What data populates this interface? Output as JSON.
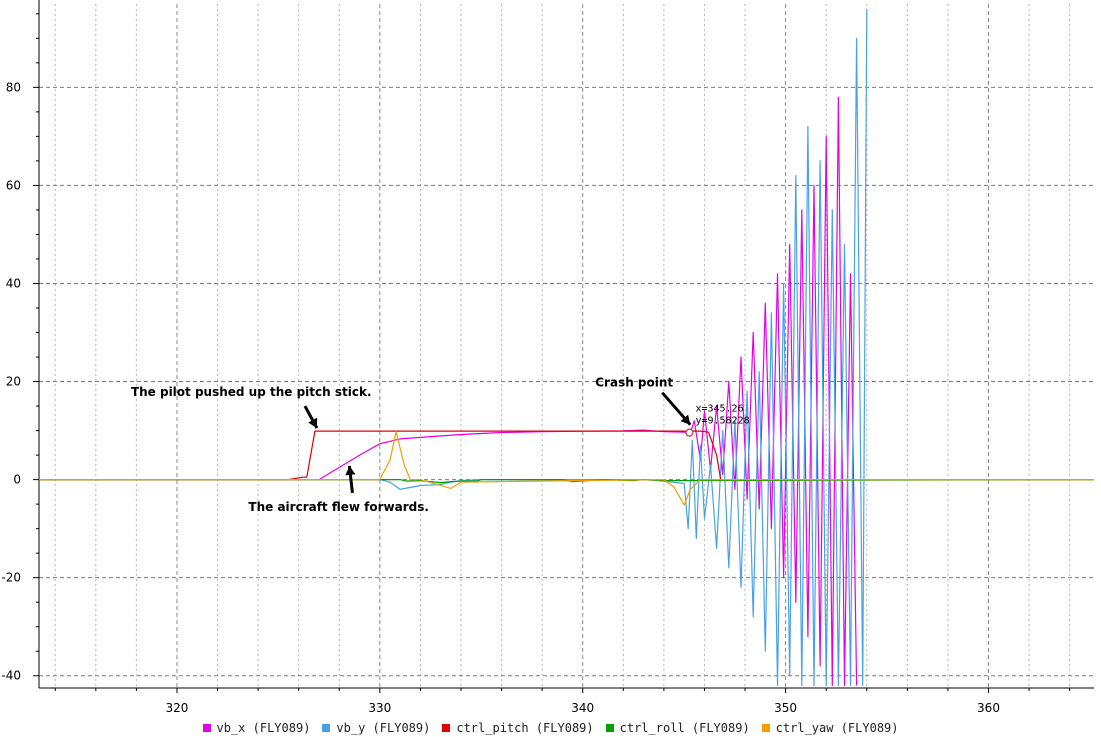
{
  "chart_data": {
    "type": "line",
    "title": "",
    "xlabel": "",
    "ylabel": "",
    "xlim": [
      313.2,
      365.2
    ],
    "ylim": [
      -42.5,
      97
    ],
    "x_ticks": [
      320,
      330,
      340,
      350,
      360
    ],
    "y_ticks": [
      -40,
      -20,
      0,
      20,
      40,
      60,
      80
    ],
    "x_tick_labels": [
      "320",
      "330",
      "340",
      "350",
      "360"
    ],
    "y_tick_labels": [
      "-40",
      "-20",
      "0",
      "20",
      "40",
      "60",
      "80"
    ],
    "grid": true,
    "legend_position": "bottom",
    "series": [
      {
        "name": "vb_x (FLY089)",
        "color": "#e600e6",
        "x": [
          313.2,
          327.0,
          328.0,
          329.0,
          330.0,
          331.0,
          332.0,
          334.0,
          336.0,
          338.0,
          340.0,
          342.0,
          343.0,
          344.0,
          345.0,
          345.3,
          345.5,
          345.8,
          346.0,
          346.3,
          346.6,
          346.9,
          347.2,
          347.5,
          347.8,
          348.1,
          348.4,
          348.7,
          349.0,
          349.3,
          349.6,
          349.9,
          350.2,
          350.5,
          350.8,
          351.1,
          351.4,
          351.7,
          352.0,
          352.3,
          352.6,
          352.9,
          353.2,
          353.5
        ],
        "y": [
          0,
          0,
          2.5,
          5,
          7.3,
          8.3,
          8.6,
          9.2,
          9.6,
          9.8,
          9.9,
          9.95,
          10.1,
          9.8,
          9.7,
          9.5,
          12,
          4,
          14,
          2,
          15,
          1,
          20,
          -2,
          25,
          -4,
          30,
          -6,
          36,
          -10,
          42,
          -20,
          48,
          -25,
          55,
          -32,
          60,
          -38,
          70,
          -42,
          78,
          -42,
          42,
          -42
        ]
      },
      {
        "name": "vb_y (FLY089)",
        "color": "#4aa1e8",
        "x": [
          313.2,
          330.0,
          330.5,
          331.0,
          332.0,
          333.0,
          333.5,
          334.0,
          335.0,
          338.0,
          343.0,
          344.0,
          345.0,
          345.2,
          345.4,
          345.6,
          345.8,
          346.0,
          346.3,
          346.6,
          346.9,
          347.2,
          347.5,
          347.8,
          348.1,
          348.4,
          348.7,
          349.0,
          349.3,
          349.6,
          349.9,
          350.2,
          350.5,
          350.8,
          351.1,
          351.4,
          351.7,
          352.0,
          352.3,
          352.6,
          352.9,
          353.2,
          353.5,
          353.8,
          354.0
        ],
        "y": [
          0,
          0,
          -0.5,
          -2.0,
          -1.2,
          -1.0,
          -0.5,
          -0.2,
          0,
          0,
          0,
          -0.3,
          -0.8,
          -10,
          8,
          -12,
          7,
          -8,
          3,
          -14,
          10,
          -18,
          12,
          -22,
          18,
          -28,
          22,
          -35,
          34,
          -42,
          40,
          -40,
          62,
          -42,
          72,
          -42,
          65,
          -42,
          55,
          -42,
          48,
          -42,
          90,
          -42,
          96
        ]
      },
      {
        "name": "ctrl_pitch (FLY089)",
        "color": "#dd0000",
        "x": [
          313.2,
          325.5,
          326.2,
          326.4,
          326.8,
          345.8,
          346.2,
          346.6,
          346.8,
          365.2
        ],
        "y": [
          0,
          0,
          0.5,
          0.5,
          9.9,
          9.9,
          9.7,
          5,
          0,
          0
        ]
      },
      {
        "name": "ctrl_roll (FLY089)",
        "color": "#00a000",
        "x": [
          313.2,
          331.0,
          331.3,
          332.0,
          333.0,
          333.5,
          334.0,
          334.8,
          335.0,
          339.0,
          339.5,
          341.0,
          342.5,
          343.0,
          344.0,
          365.2
        ],
        "y": [
          0,
          0,
          -0.3,
          -0.2,
          -0.6,
          -0.4,
          -0.3,
          -0.3,
          0,
          0,
          -0.4,
          0,
          -0.2,
          0,
          -0.2,
          0
        ]
      },
      {
        "name": "ctrl_yaw (FLY089)",
        "color": "#f0a000",
        "x": [
          313.2,
          330.0,
          330.5,
          330.8,
          331.2,
          331.5,
          332.0,
          333.5,
          334.0,
          344.0,
          344.5,
          345.0,
          345.3,
          345.8,
          365.2
        ],
        "y": [
          0,
          0,
          4,
          9.8,
          3,
          0,
          0,
          -1.8,
          -0.5,
          0,
          -1.5,
          -5.2,
          -2,
          0,
          0
        ]
      }
    ],
    "annotations": [
      {
        "id": "pitch",
        "text": "The pilot pushed up the pitch stick.",
        "x": 326.9,
        "y": 10.5
      },
      {
        "id": "forward",
        "text": "The aircraft flew forwards.",
        "x": 328.5,
        "y": 2.8
      },
      {
        "id": "crash",
        "text": "Crash point",
        "x": 345.3,
        "y": 11.2
      }
    ],
    "cursor": {
      "x": 345.26,
      "y": 9.58228,
      "x_text": "x=345.26",
      "y_text": "y=9.58228"
    }
  }
}
